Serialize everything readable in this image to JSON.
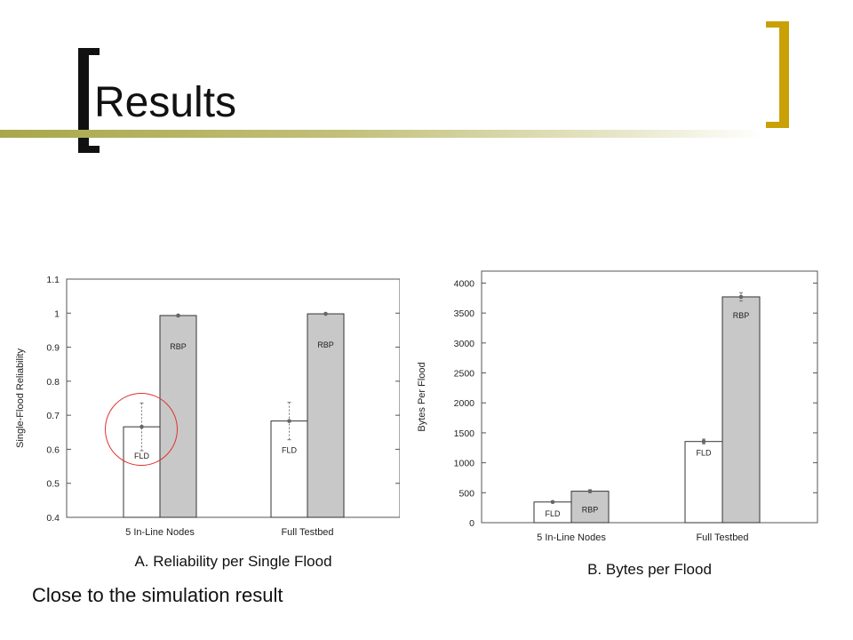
{
  "slide": {
    "title": "Results",
    "caption": "Close to the simulation result",
    "accent_color": "#c9a006",
    "highlight_color": "#e23030"
  },
  "chart_data": [
    {
      "type": "bar",
      "title": "A. Reliability per Single Flood",
      "xlabel": "",
      "ylabel": "Single-Flood Reliability",
      "categories": [
        "5 In-Line Nodes",
        "Full Testbed"
      ],
      "ylim": [
        0.4,
        1.1
      ],
      "yticks": [
        "0.4",
        "0.5",
        "0.6",
        "0.7",
        "0.8",
        "0.9",
        "1",
        "1.1"
      ],
      "series": [
        {
          "name": "FLD",
          "values": [
            0.666,
            0.683
          ],
          "error": [
            0.07,
            0.055
          ],
          "color": "#ffffff"
        },
        {
          "name": "RBP",
          "values": [
            0.993,
            0.998
          ],
          "error": [
            0.003,
            0.002
          ],
          "color": "#c8c8c8"
        }
      ],
      "grid": false,
      "legend": "none"
    },
    {
      "type": "bar",
      "title": "B. Bytes per Flood",
      "xlabel": "",
      "ylabel": "Bytes Per Flood",
      "categories": [
        "5 In-Line Nodes",
        "Full Testbed"
      ],
      "ylim": [
        0,
        4200
      ],
      "yticks": [
        "0",
        "500",
        "1000",
        "1500",
        "2000",
        "2500",
        "3000",
        "3500",
        "4000"
      ],
      "series": [
        {
          "name": "FLD",
          "values": [
            345,
            1355
          ],
          "error": [
            15,
            40
          ],
          "color": "#ffffff"
        },
        {
          "name": "RBP",
          "values": [
            525,
            3770
          ],
          "error": [
            25,
            70
          ],
          "color": "#c8c8c8"
        }
      ],
      "grid": false,
      "legend": "none"
    }
  ]
}
